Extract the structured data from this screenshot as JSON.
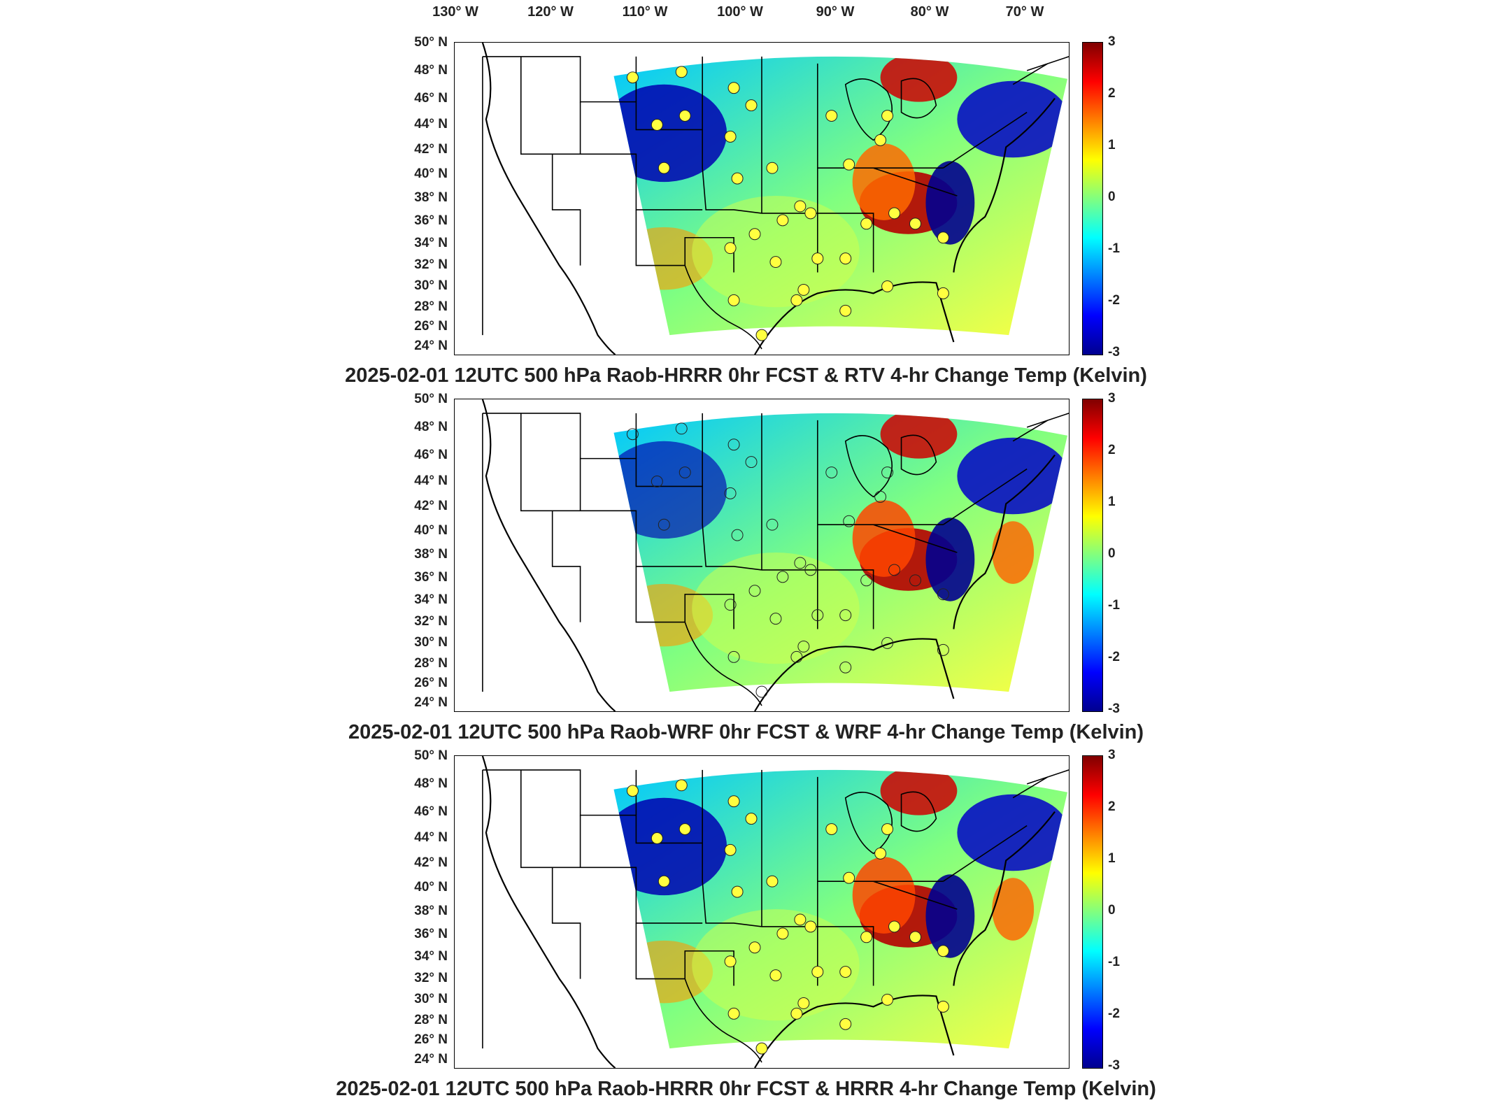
{
  "longitude_labels": [
    "130° W",
    "120° W",
    "110° W",
    "100° W",
    "90° W",
    "80° W",
    "70° W"
  ],
  "latitude_labels": [
    "50° N",
    "48° N",
    "46° N",
    "44° N",
    "42° N",
    "40° N",
    "38° N",
    "36° N",
    "34° N",
    "32° N",
    "30° N",
    "28° N",
    "26° N",
    "24° N"
  ],
  "colorbar": {
    "ticks": [
      "3",
      "2",
      "1",
      "0",
      "-1",
      "-2",
      "-3"
    ],
    "range": [
      -3,
      3
    ],
    "colormap": [
      "#00008f",
      "#0000ff",
      "#0080ff",
      "#00ffff",
      "#80ff80",
      "#ffff00",
      "#ff8000",
      "#ff0000",
      "#800000"
    ]
  },
  "panels": [
    {
      "title": "2025-02-01 12UTC 500 hPa Raob-HRRR 0hr FCST & RTV 4-hr Change Temp (Kelvin)"
    },
    {
      "title": "2025-02-01 12UTC 500 hPa Raob-WRF 0hr FCST & WRF 4-hr Change Temp (Kelvin)"
    },
    {
      "title": "2025-02-01 12UTC 500 hPa Raob-HRRR 0hr FCST & HRRR 4-hr Change Temp (Kelvin)"
    }
  ]
}
